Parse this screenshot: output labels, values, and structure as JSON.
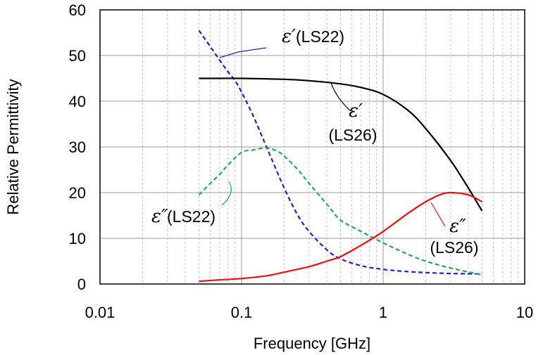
{
  "chart_data": {
    "type": "line",
    "title": "",
    "xlabel": "Frequency [GHz]",
    "ylabel": "Relative Permittivity",
    "x_scale": "log",
    "xlim": [
      0.01,
      10
    ],
    "ylim": [
      0,
      60
    ],
    "x_ticks": [
      "0.01",
      "0.1",
      "1",
      "10"
    ],
    "y_ticks": [
      "0",
      "10",
      "20",
      "30",
      "40",
      "50",
      "60"
    ],
    "grid": "vertical minor and major gridlines",
    "legend": "none (inline annotations)",
    "series": [
      {
        "name": "ε′(LS22)",
        "color": "#2222cc",
        "dash": "dashed",
        "x": [
          0.05,
          0.06,
          0.07,
          0.08,
          0.09,
          0.1,
          0.12,
          0.15,
          0.2,
          0.25,
          0.3,
          0.4,
          0.5,
          0.7,
          1,
          1.5,
          2,
          3,
          5
        ],
        "y": [
          55.5,
          52,
          49,
          46.5,
          44.5,
          42,
          37,
          30,
          21,
          15,
          11.5,
          7.5,
          5.5,
          4,
          3.2,
          2.7,
          2.5,
          2.3,
          2.2
        ]
      },
      {
        "name": "ε″(LS22)",
        "color": "#22aa55",
        "dash": "dashed",
        "x": [
          0.05,
          0.06,
          0.07,
          0.08,
          0.1,
          0.12,
          0.15,
          0.18,
          0.2,
          0.25,
          0.3,
          0.4,
          0.5,
          0.7,
          1,
          1.5,
          2,
          3,
          5
        ],
        "y": [
          19.5,
          22,
          24,
          26,
          28.8,
          29.3,
          29.8,
          29,
          28,
          25,
          22,
          17.5,
          14,
          11.5,
          9,
          6.5,
          5,
          3.5,
          2
        ]
      },
      {
        "name": "ε′(LS26)",
        "color": "#000000",
        "dash": "solid",
        "x": [
          0.05,
          0.07,
          0.1,
          0.2,
          0.3,
          0.5,
          0.7,
          1,
          1.5,
          2,
          3,
          4,
          5
        ],
        "y": [
          45,
          45,
          45,
          44.8,
          44.5,
          43.8,
          43,
          41.5,
          38,
          34,
          27,
          21,
          16
        ]
      },
      {
        "name": "ε″(LS26)",
        "color": "#ee1111",
        "dash": "solid",
        "x": [
          0.05,
          0.07,
          0.1,
          0.15,
          0.2,
          0.3,
          0.4,
          0.5,
          0.7,
          1,
          1.5,
          2,
          2.5,
          3,
          4,
          5
        ],
        "y": [
          0.6,
          0.9,
          1.2,
          1.8,
          2.6,
          3.8,
          5,
          6,
          8.5,
          11.5,
          15.5,
          18,
          19.5,
          20,
          19.5,
          18
        ]
      }
    ],
    "annotations": [
      {
        "symbol": "ε′",
        "label": "(LS22)"
      },
      {
        "symbol": "ε′",
        "label": "(LS26)"
      },
      {
        "symbol": "ε″",
        "label": "(LS22)"
      },
      {
        "symbol": "ε″",
        "label": "(LS26)"
      }
    ]
  }
}
